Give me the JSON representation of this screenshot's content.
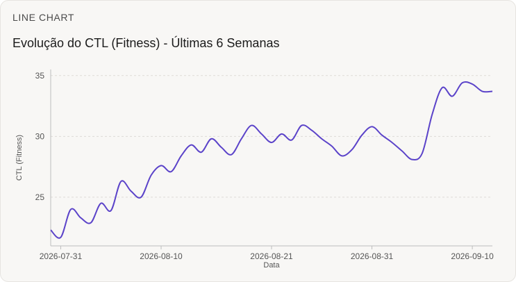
{
  "header": {
    "eyebrow": "LINE CHART",
    "title": "Evolução do CTL (Fitness) - Últimas 6 Semanas"
  },
  "colors": {
    "line": "#5b43c9",
    "grid": "#dddbd6",
    "axis": "#bdbdbd"
  },
  "chart_data": {
    "type": "line",
    "title": "Evolução do CTL (Fitness) - Últimas 6 Semanas",
    "xlabel": "Data",
    "ylabel": "CTL (Fitness)",
    "grid": true,
    "grid_axis": "y",
    "legend": "none",
    "xlim": [
      "2026-07-30",
      "2026-09-12"
    ],
    "ylim": [
      21,
      35.5
    ],
    "x_ticks": [
      "2026-07-31",
      "2026-08-10",
      "2026-08-21",
      "2026-08-31",
      "2026-09-10"
    ],
    "y_ticks": [
      25,
      30,
      35
    ],
    "series": [
      {
        "x": [
          "2026-07-30",
          "2026-07-31",
          "2026-08-01",
          "2026-08-02",
          "2026-08-03",
          "2026-08-04",
          "2026-08-05",
          "2026-08-06",
          "2026-08-07",
          "2026-08-08",
          "2026-08-09",
          "2026-08-10",
          "2026-08-11",
          "2026-08-12",
          "2026-08-13",
          "2026-08-14",
          "2026-08-15",
          "2026-08-16",
          "2026-08-17",
          "2026-08-18",
          "2026-08-19",
          "2026-08-20",
          "2026-08-21",
          "2026-08-22",
          "2026-08-23",
          "2026-08-24",
          "2026-08-25",
          "2026-08-26",
          "2026-08-27",
          "2026-08-28",
          "2026-08-29",
          "2026-08-30",
          "2026-08-31",
          "2026-09-01",
          "2026-09-02",
          "2026-09-03",
          "2026-09-04",
          "2026-09-05",
          "2026-09-06",
          "2026-09-07",
          "2026-09-08",
          "2026-09-09",
          "2026-09-10",
          "2026-09-11",
          "2026-09-12"
        ],
        "values": [
          22.3,
          21.7,
          24.0,
          23.3,
          22.9,
          24.5,
          23.9,
          26.3,
          25.5,
          25.0,
          26.8,
          27.6,
          27.1,
          28.4,
          29.3,
          28.7,
          29.8,
          29.1,
          28.5,
          29.8,
          30.9,
          30.2,
          29.5,
          30.2,
          29.7,
          30.9,
          30.5,
          29.8,
          29.2,
          28.4,
          28.9,
          30.1,
          30.8,
          30.1,
          29.5,
          28.8,
          28.1,
          28.6,
          31.8,
          34.0,
          33.3,
          34.4,
          34.3,
          33.7,
          33.7
        ]
      }
    ]
  }
}
